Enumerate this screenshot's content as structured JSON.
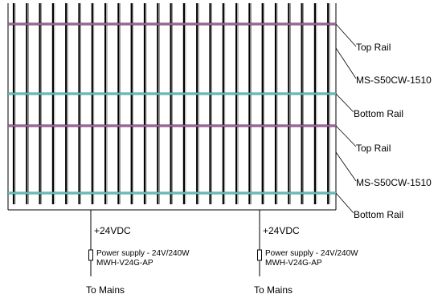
{
  "labels": {
    "top_rail_1": "Top Rail",
    "panel_1": "MS-S50CW-1510",
    "bottom_rail_1": "Bottom Rail",
    "top_rail_2": "Top Rail",
    "panel_2": "MS-S50CW-1510",
    "bottom_rail_2": "Bottom Rail"
  },
  "supplies": [
    {
      "voltage": "+24VDC",
      "power": "Power supply - 24V/240W",
      "model": "MWH-V24G-AP",
      "mains": "To Mains"
    },
    {
      "voltage": "+24VDC",
      "power": "Power supply - 24V/240W",
      "model": "MWH-V24G-AP",
      "mains": "To Mains"
    }
  ],
  "colors": {
    "line": "#000000",
    "top_rail": "#6a2a66",
    "bottom_rail": "#2a9a92"
  }
}
